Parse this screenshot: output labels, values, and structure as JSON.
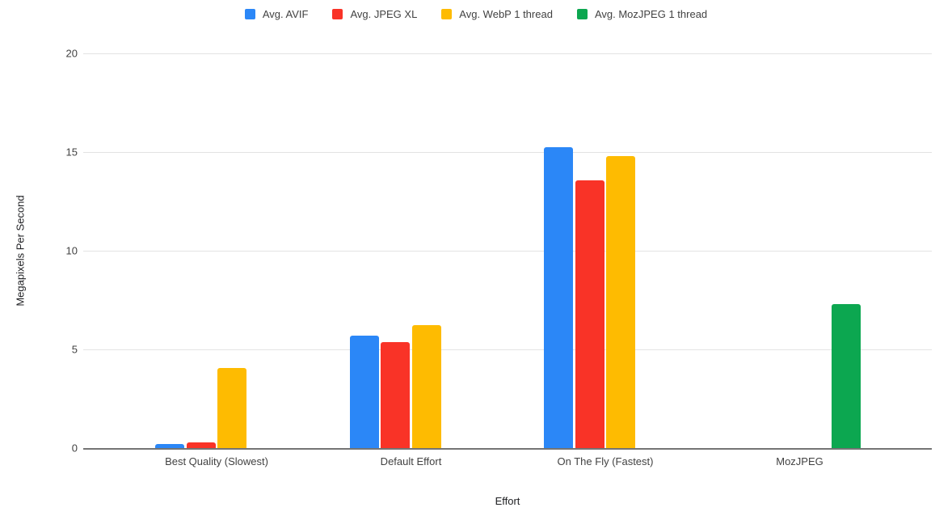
{
  "chart_data": {
    "type": "bar",
    "title": "",
    "categories": [
      "Best Quality (Slowest)",
      "Default Effort",
      "On The Fly (Fastest)",
      "MozJPEG"
    ],
    "series": [
      {
        "name": "Avg. AVIF",
        "color": "#2b87f7",
        "values": [
          0.2,
          5.7,
          15.25,
          null
        ]
      },
      {
        "name": "Avg. JPEG XL",
        "color": "#f93327",
        "values": [
          0.3,
          5.35,
          13.55,
          null
        ]
      },
      {
        "name": "Avg. WebP 1 thread",
        "color": "#febb01",
        "values": [
          4.05,
          6.25,
          14.8,
          null
        ]
      },
      {
        "name": "Avg. MozJPEG 1 thread",
        "color": "#0ca750",
        "values": [
          null,
          null,
          null,
          7.3
        ]
      }
    ],
    "xlabel": "Effort",
    "ylabel": "Megapixels Per Second",
    "ylim": [
      0,
      20
    ],
    "yticks": [
      0,
      5,
      10,
      15,
      20
    ],
    "grid": true,
    "legend_position": "top",
    "colors": {
      "gridline": "#e3e3e3",
      "axis_line": "#747474",
      "tick_text": "#424242",
      "title_text": "#202124",
      "background": "#ffffff"
    }
  }
}
